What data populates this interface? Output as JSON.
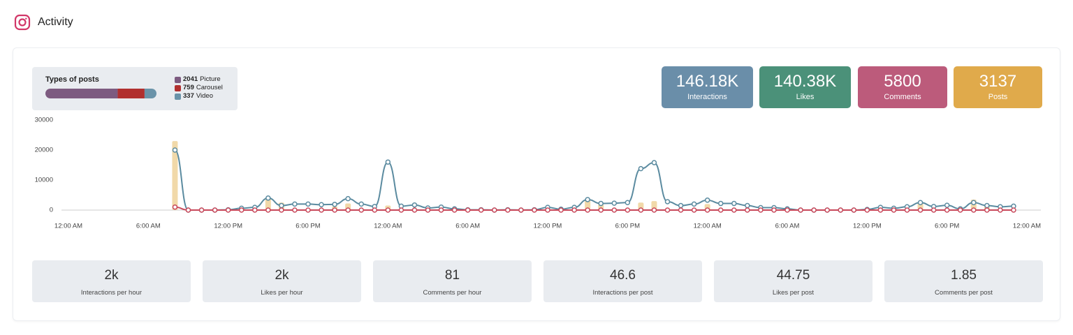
{
  "header": {
    "title": "Activity"
  },
  "post_types": {
    "title": "Types of posts",
    "items": [
      {
        "count": 2041,
        "label": "Picture",
        "color": "#7d5b80"
      },
      {
        "count": 759,
        "label": "Carousel",
        "color": "#b1302f"
      },
      {
        "count": 337,
        "label": "Video",
        "color": "#6a93a9"
      }
    ]
  },
  "kpis": [
    {
      "value": "146.18K",
      "label": "Interactions",
      "color": "#6a8ea9"
    },
    {
      "value": "140.38K",
      "label": "Likes",
      "color": "#4b9179"
    },
    {
      "value": "5800",
      "label": "Comments",
      "color": "#bc5b7b"
    },
    {
      "value": "3137",
      "label": "Posts",
      "color": "#e0aa4b"
    }
  ],
  "chart_data": {
    "type": "line",
    "x": [
      8,
      9,
      10,
      11,
      12,
      13,
      14,
      15,
      16,
      17,
      18,
      19,
      20,
      21,
      22,
      23,
      24,
      25,
      26,
      27,
      28,
      29,
      30,
      31,
      32,
      33,
      34,
      35,
      36,
      37,
      38,
      39,
      40,
      41,
      42,
      43,
      44,
      45,
      46,
      47,
      48,
      49,
      50,
      51,
      52,
      53,
      54,
      55,
      56,
      57,
      58,
      59,
      60,
      61,
      62,
      63,
      64,
      65,
      66,
      67,
      68,
      69,
      70,
      71
    ],
    "xlim": [
      0,
      72
    ],
    "xticks": [
      {
        "value": 0,
        "label": "12:00 AM"
      },
      {
        "value": 6,
        "label": "6:00 AM"
      },
      {
        "value": 12,
        "label": "12:00 PM"
      },
      {
        "value": 18,
        "label": "6:00 PM"
      },
      {
        "value": 24,
        "label": "12:00 AM"
      },
      {
        "value": 30,
        "label": "6:00 AM"
      },
      {
        "value": 36,
        "label": "12:00 PM"
      },
      {
        "value": 42,
        "label": "6:00 PM"
      },
      {
        "value": 48,
        "label": "12:00 AM"
      },
      {
        "value": 54,
        "label": "6:00 AM"
      },
      {
        "value": 60,
        "label": "12:00 PM"
      },
      {
        "value": 66,
        "label": "6:00 PM"
      },
      {
        "value": 72,
        "label": "12:00 AM"
      }
    ],
    "ylim": [
      0,
      30000
    ],
    "yticks": [
      0,
      10000,
      20000,
      30000
    ],
    "grid": false,
    "series": [
      {
        "type": "bar",
        "color": "#f1d9a9",
        "values": [
          23000,
          0,
          0,
          0,
          0,
          600,
          0,
          4000,
          2500,
          0,
          0,
          0,
          1200,
          2200,
          0,
          0,
          1500,
          0,
          0,
          0,
          0,
          0,
          0,
          0,
          0,
          0,
          0,
          0,
          0,
          0,
          0,
          3500,
          2000,
          0,
          0,
          2500,
          3000,
          0,
          0,
          0,
          2000,
          0,
          0,
          0,
          0,
          0,
          0,
          0,
          0,
          0,
          0,
          0,
          0,
          0,
          0,
          0,
          2500,
          0,
          0,
          0,
          3500,
          1500,
          0,
          0
        ]
      },
      {
        "type": "line",
        "color": "#5b8ba0",
        "values": [
          20000,
          0,
          0,
          0,
          100,
          600,
          900,
          4000,
          1500,
          2000,
          2000,
          1800,
          1900,
          3800,
          2000,
          1200,
          16000,
          1300,
          1700,
          700,
          1000,
          400,
          100,
          100,
          0,
          100,
          0,
          100,
          900,
          300,
          900,
          3500,
          2200,
          2300,
          2500,
          13800,
          15800,
          2800,
          1500,
          2000,
          3300,
          2200,
          2200,
          1500,
          800,
          800,
          400,
          0,
          0,
          0,
          0,
          0,
          200,
          900,
          600,
          1100,
          2500,
          1200,
          1600,
          400,
          2500,
          1500,
          1100,
          1300
        ]
      },
      {
        "type": "line",
        "color": "#c8485a",
        "values": [
          1000,
          0,
          0,
          0,
          0,
          0,
          0,
          0,
          0,
          0,
          0,
          0,
          0,
          0,
          0,
          0,
          0,
          0,
          0,
          0,
          0,
          0,
          0,
          0,
          0,
          0,
          0,
          0,
          0,
          0,
          0,
          0,
          0,
          0,
          0,
          0,
          0,
          0,
          0,
          0,
          0,
          0,
          0,
          0,
          0,
          0,
          0,
          0,
          0,
          0,
          0,
          0,
          0,
          0,
          0,
          0,
          0,
          0,
          0,
          0,
          0,
          0,
          0,
          0
        ]
      }
    ]
  },
  "stats": [
    {
      "value": "2k",
      "label": "Interactions per hour"
    },
    {
      "value": "2k",
      "label": "Likes per hour"
    },
    {
      "value": "81",
      "label": "Comments per hour"
    },
    {
      "value": "46.6",
      "label": "Interactions per post"
    },
    {
      "value": "44.75",
      "label": "Likes per post"
    },
    {
      "value": "1.85",
      "label": "Comments per post"
    }
  ]
}
